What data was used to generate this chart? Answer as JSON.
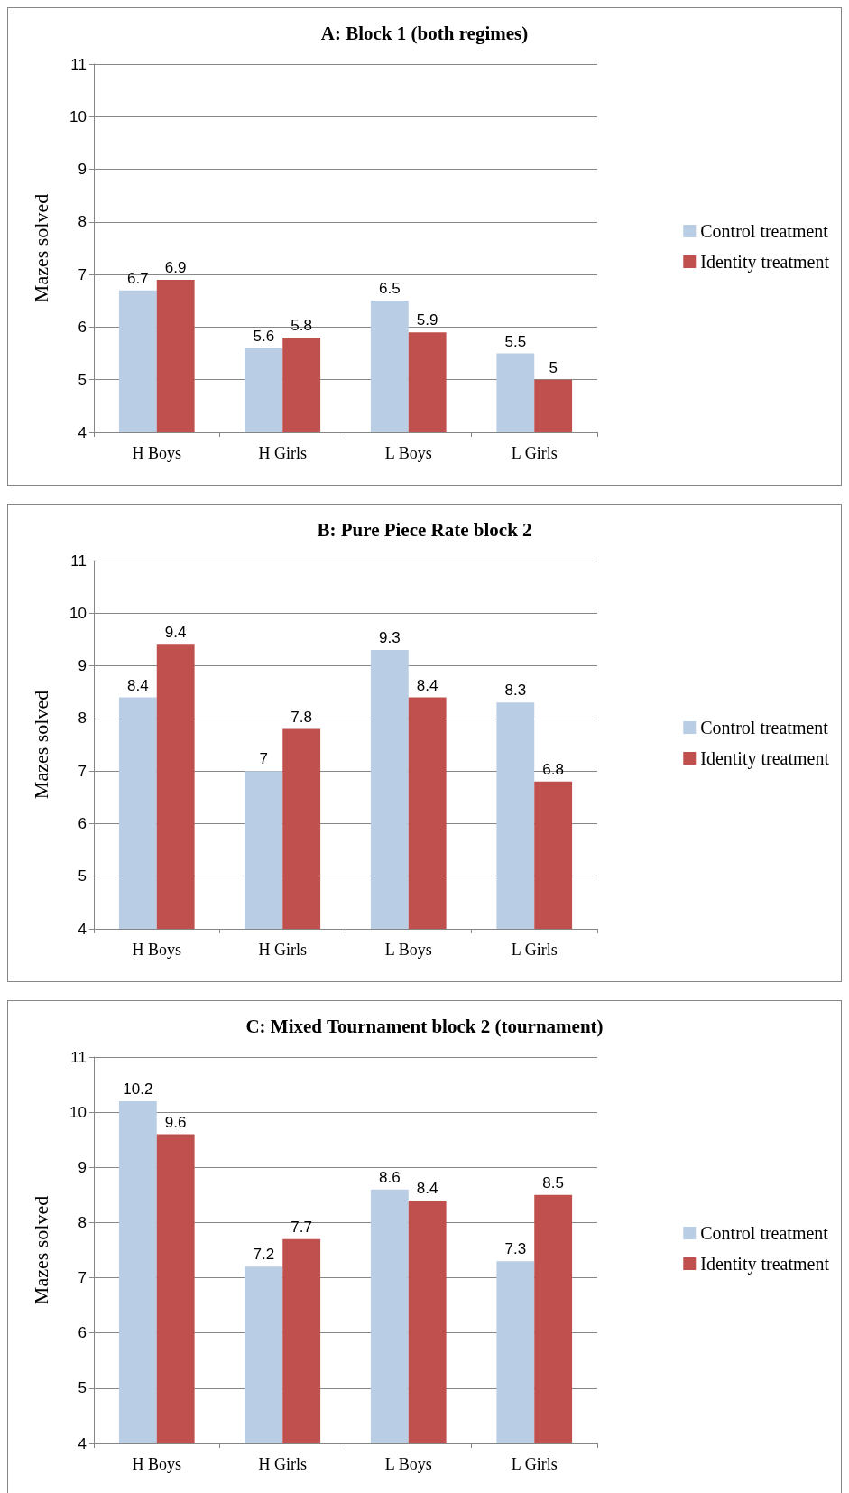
{
  "chart_data": [
    {
      "type": "bar",
      "title": "A: Block 1 (both regimes)",
      "ylabel": "Mazes solved",
      "categories": [
        "H Boys",
        "H Girls",
        "L Boys",
        "L Girls"
      ],
      "series": [
        {
          "name": "Control treatment",
          "color": "#b9cde5",
          "values": [
            6.7,
            5.6,
            6.5,
            5.5
          ]
        },
        {
          "name": "Identity treatment",
          "color": "#c0504d",
          "values": [
            6.9,
            5.8,
            5.9,
            5
          ]
        }
      ],
      "ylim": [
        4,
        11
      ],
      "yticks": [
        4,
        5,
        6,
        7,
        8,
        9,
        10,
        11
      ],
      "grid": "y",
      "legend": "right",
      "data_labels": true
    },
    {
      "type": "bar",
      "title": "B: Pure Piece Rate block 2",
      "ylabel": "Mazes solved",
      "categories": [
        "H Boys",
        "H Girls",
        "L Boys",
        "L Girls"
      ],
      "series": [
        {
          "name": "Control treatment",
          "color": "#b9cde5",
          "values": [
            8.4,
            7,
            9.3,
            8.3
          ]
        },
        {
          "name": "Identity treatment",
          "color": "#c0504d",
          "values": [
            9.4,
            7.8,
            8.4,
            6.8
          ]
        }
      ],
      "ylim": [
        4,
        11
      ],
      "yticks": [
        4,
        5,
        6,
        7,
        8,
        9,
        10,
        11
      ],
      "grid": "y",
      "legend": "right",
      "data_labels": true
    },
    {
      "type": "bar",
      "title": "C: Mixed Tournament block 2 (tournament)",
      "ylabel": "Mazes solved",
      "categories": [
        "H Boys",
        "H Girls",
        "L Boys",
        "L Girls"
      ],
      "series": [
        {
          "name": "Control treatment",
          "color": "#b9cde5",
          "values": [
            10.2,
            7.2,
            8.6,
            7.3
          ]
        },
        {
          "name": "Identity treatment",
          "color": "#c0504d",
          "values": [
            9.6,
            7.7,
            8.4,
            8.5
          ]
        }
      ],
      "ylim": [
        4,
        11
      ],
      "yticks": [
        4,
        5,
        6,
        7,
        8,
        9,
        10,
        11
      ],
      "grid": "y",
      "legend": "right",
      "data_labels": true
    }
  ]
}
